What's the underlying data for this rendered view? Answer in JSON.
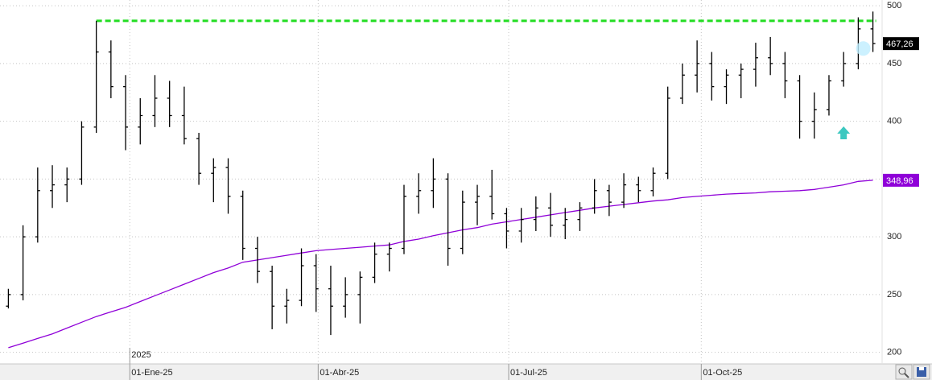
{
  "chart_data": {
    "type": "ohlc",
    "xlim": [
      "2024-10-31",
      "2025-12-26"
    ],
    "ylim": [
      190,
      505
    ],
    "yticks": [
      200,
      250,
      300,
      350,
      400,
      450,
      500
    ],
    "xticks": [
      {
        "value": "2025-01-01",
        "label": "01-Ene-25"
      },
      {
        "value": "2025-04-01",
        "label": "01-Abr-25"
      },
      {
        "value": "2025-07-01",
        "label": "01-Jul-25"
      },
      {
        "value": "2025-10-01",
        "label": "01-Oct-25"
      }
    ],
    "grid": true,
    "annotations": [
      {
        "text": "2025",
        "x": "2025-01-01"
      }
    ],
    "hline": {
      "value": 487,
      "color": "#22dd22"
    },
    "markers": [
      {
        "shape": "arrow",
        "x": "2025-12-08",
        "y": 390,
        "color": "#3cc8c0"
      },
      {
        "shape": "circle",
        "x": "2025-12-22",
        "y": 463,
        "color": "#bfeeff"
      }
    ],
    "x": [
      "2024-11-04",
      "2024-11-11",
      "2024-11-18",
      "2024-11-25",
      "2024-12-02",
      "2024-12-09",
      "2024-12-16",
      "2024-12-23",
      "2024-12-30",
      "2025-01-06",
      "2025-01-13",
      "2025-01-20",
      "2025-01-27",
      "2025-02-03",
      "2025-02-10",
      "2025-02-17",
      "2025-02-24",
      "2025-03-03",
      "2025-03-10",
      "2025-03-17",
      "2025-03-24",
      "2025-03-31",
      "2025-04-07",
      "2025-04-14",
      "2025-04-21",
      "2025-04-28",
      "2025-05-05",
      "2025-05-12",
      "2025-05-19",
      "2025-05-26",
      "2025-06-02",
      "2025-06-09",
      "2025-06-16",
      "2025-06-23",
      "2025-06-30",
      "2025-07-07",
      "2025-07-14",
      "2025-07-21",
      "2025-07-28",
      "2025-08-04",
      "2025-08-11",
      "2025-08-18",
      "2025-08-25",
      "2025-09-01",
      "2025-09-08",
      "2025-09-15",
      "2025-09-22",
      "2025-09-29",
      "2025-10-06",
      "2025-10-13",
      "2025-10-20",
      "2025-10-27",
      "2025-11-03",
      "2025-11-10",
      "2025-11-17",
      "2025-11-24",
      "2025-12-01",
      "2025-12-08",
      "2025-12-15",
      "2025-12-22"
    ],
    "ohlc": {
      "color": "#000000",
      "open": [
        240,
        250,
        300,
        340,
        345,
        350,
        395,
        460,
        430,
        395,
        405,
        420,
        405,
        385,
        355,
        360,
        335,
        290,
        270,
        240,
        245,
        275,
        255,
        240,
        250,
        265,
        285,
        290,
        335,
        340,
        350,
        290,
        330,
        335,
        320,
        305,
        315,
        325,
        310,
        315,
        325,
        340,
        330,
        345,
        340,
        355,
        420,
        440,
        450,
        430,
        440,
        445,
        455,
        450,
        435,
        400,
        410,
        435,
        450,
        480
      ],
      "high": [
        255,
        310,
        360,
        362,
        360,
        400,
        487,
        470,
        440,
        420,
        440,
        435,
        430,
        390,
        368,
        368,
        340,
        300,
        275,
        255,
        290,
        285,
        275,
        265,
        270,
        295,
        295,
        345,
        355,
        368,
        355,
        340,
        345,
        358,
        325,
        325,
        335,
        338,
        325,
        330,
        350,
        345,
        355,
        352,
        360,
        430,
        450,
        470,
        460,
        445,
        450,
        468,
        473,
        460,
        440,
        425,
        440,
        460,
        490,
        495
      ],
      "low": [
        238,
        245,
        295,
        325,
        330,
        345,
        390,
        420,
        375,
        380,
        395,
        395,
        380,
        345,
        330,
        320,
        280,
        260,
        220,
        225,
        240,
        235,
        215,
        230,
        225,
        260,
        270,
        285,
        320,
        325,
        275,
        285,
        310,
        315,
        290,
        295,
        305,
        300,
        298,
        305,
        320,
        318,
        325,
        330,
        335,
        350,
        415,
        425,
        418,
        415,
        420,
        430,
        440,
        420,
        385,
        385,
        405,
        430,
        445,
        460
      ],
      "close": [
        250,
        300,
        340,
        345,
        350,
        395,
        460,
        430,
        395,
        405,
        420,
        405,
        385,
        355,
        360,
        335,
        290,
        270,
        240,
        245,
        275,
        255,
        240,
        250,
        265,
        285,
        290,
        335,
        340,
        350,
        290,
        330,
        335,
        320,
        305,
        315,
        325,
        310,
        315,
        325,
        340,
        330,
        345,
        340,
        355,
        420,
        440,
        450,
        430,
        440,
        445,
        455,
        450,
        435,
        400,
        410,
        435,
        450,
        480,
        467.26
      ],
      "value_labels": [
        null,
        null,
        null,
        null,
        null,
        null,
        null,
        null,
        null,
        null,
        null,
        null,
        null,
        null,
        null,
        null,
        null,
        null,
        null,
        null,
        null,
        null,
        null,
        null,
        null,
        null,
        null,
        null,
        null,
        null,
        null,
        null,
        null,
        null,
        null,
        null,
        null,
        null,
        null,
        null,
        null,
        null,
        null,
        null,
        null,
        null,
        null,
        null,
        null,
        null,
        null,
        null,
        null,
        null,
        null,
        null,
        null,
        null,
        null,
        "467,26"
      ],
      "tag_color": "#000000"
    },
    "ma": {
      "color": "#8f00d8",
      "values": [
        204,
        208,
        212,
        216,
        221,
        226,
        231,
        235,
        239,
        244,
        249,
        254,
        259,
        264,
        269,
        273,
        278,
        280,
        282,
        284,
        286,
        288,
        289,
        290,
        291,
        292,
        293,
        296,
        298,
        301,
        303.5,
        306,
        308,
        311,
        313,
        315,
        317,
        319,
        321,
        323,
        325,
        326.5,
        328,
        329.5,
        331,
        332,
        334,
        335,
        336,
        337,
        337.5,
        338,
        339,
        339.5,
        340,
        341,
        343,
        345,
        348,
        348.96
      ],
      "value_labels": [
        null,
        null,
        null,
        null,
        null,
        null,
        null,
        null,
        null,
        null,
        null,
        null,
        null,
        null,
        null,
        null,
        null,
        null,
        null,
        null,
        null,
        null,
        null,
        null,
        null,
        null,
        null,
        null,
        null,
        null,
        null,
        null,
        null,
        null,
        null,
        null,
        null,
        null,
        null,
        null,
        null,
        null,
        null,
        null,
        null,
        null,
        null,
        null,
        null,
        null,
        null,
        null,
        null,
        null,
        null,
        null,
        null,
        null,
        null,
        "348,96"
      ]
    }
  }
}
